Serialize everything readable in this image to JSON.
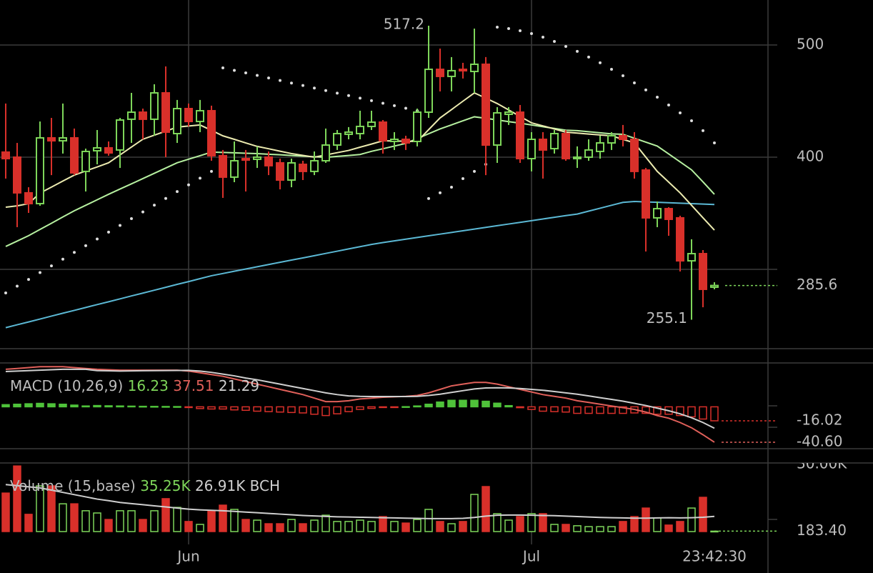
{
  "chart_data": [
    {
      "type": "candlestick",
      "categories": [
        null,
        null,
        null,
        null,
        null,
        null,
        null,
        null,
        null,
        null,
        null,
        null,
        null,
        null,
        null,
        null,
        "Jun",
        null,
        null,
        null,
        null,
        null,
        null,
        null,
        null,
        null,
        null,
        null,
        null,
        null,
        null,
        null,
        null,
        null,
        null,
        null,
        null,
        null,
        null,
        null,
        null,
        null,
        null,
        null,
        null,
        null,
        "Jul",
        null,
        null,
        null,
        null,
        null,
        null,
        null,
        null,
        null,
        null,
        null,
        null,
        null,
        null,
        null,
        null
      ],
      "open": [
        404.5,
        400,
        368.2,
        358.6,
        417.2,
        414.6,
        417.2,
        387.3,
        405.7,
        408.3,
        406.4,
        433.8,
        440.1,
        433.8,
        457.3,
        421,
        443.3,
        431.8,
        441.4,
        401.3,
        382.2,
        398.7,
        398.1,
        400,
        394.9,
        379.6,
        393.6,
        387.3,
        396.8,
        410.8,
        420.4,
        421,
        427.4,
        431.2,
        414,
        415.9,
        414,
        440.1,
        478.3,
        472,
        478.3,
        476.4,
        482.8,
        410.8,
        438.2,
        440.1,
        398.7,
        415.9,
        407.6,
        421,
        398.7,
        400,
        405.1,
        412.7,
        419.1,
        415.9,
        388.5,
        345.9,
        354.1,
        345.9,
        307.6,
        314,
        284.1
      ],
      "high": [
        447.8,
        412.7,
        373.2,
        431.8,
        435,
        447.8,
        425.5,
        407.6,
        424.2,
        414,
        435,
        457.3,
        443.3,
        465,
        480.9,
        451,
        447.8,
        451,
        445.9,
        406.4,
        414,
        406.4,
        409.6,
        405.1,
        398.7,
        398.7,
        396.8,
        405.1,
        425.5,
        424.2,
        426.8,
        441.4,
        441.4,
        433.1,
        422.3,
        419.1,
        443.3,
        517.2,
        496.8,
        489.2,
        484.1,
        514.6,
        489.2,
        444.6,
        444.6,
        446.5,
        422.3,
        422.3,
        424.2,
        424.2,
        409.6,
        415.9,
        419.1,
        422.3,
        428.7,
        422.3,
        390.4,
        360.5,
        355.4,
        347.8,
        326.8,
        317.2,
        288.5
      ],
      "low": [
        380.9,
        337.6,
        350.3,
        356.7,
        384,
        403.2,
        384,
        369.4,
        393.6,
        401.3,
        390.4,
        412.7,
        415.9,
        419.1,
        400,
        412.7,
        427.4,
        422.3,
        396.8,
        363.7,
        377.7,
        369.4,
        390.4,
        384,
        371.3,
        373.2,
        379.6,
        384,
        394.9,
        406.4,
        415.9,
        415.9,
        424.2,
        403.2,
        406.4,
        406.4,
        409.6,
        435,
        458.6,
        458.6,
        470.1,
        457.3,
        384,
        394.9,
        428.7,
        394.9,
        387.3,
        380.9,
        403.2,
        396.8,
        390.4,
        396.8,
        398.7,
        406.4,
        409.6,
        380.9,
        315.9,
        337.6,
        329.9,
        298.1,
        255.1,
        266.2,
        282.2
      ],
      "close": [
        398.7,
        368.2,
        358.6,
        417.2,
        414.6,
        417.2,
        386,
        405.1,
        408.3,
        403.8,
        433.1,
        440.1,
        433.8,
        457.3,
        422.3,
        443.3,
        431.8,
        441.4,
        401.3,
        382.2,
        396.8,
        397.5,
        400,
        392.4,
        379.6,
        394.9,
        387.3,
        396.8,
        410.8,
        421,
        422.3,
        427.4,
        431.2,
        414.6,
        415.9,
        412.7,
        440.1,
        478.3,
        472,
        477.1,
        477.1,
        482.8,
        410.8,
        439.5,
        440.1,
        398.7,
        415.9,
        406.4,
        421,
        398.7,
        400,
        406.4,
        412.7,
        419.1,
        415.9,
        387.3,
        345.9,
        354.1,
        344.6,
        307.6,
        314,
        282.2,
        285.6
      ],
      "up_color": "#7ed65a",
      "down_color": "#d9302a",
      "series": [
        {
          "color": "#5bb8d4",
          "style": "line",
          "values": [
            248,
            250.6,
            253.1,
            255.7,
            258.3,
            260.9,
            263.4,
            266,
            268.6,
            271.1,
            273.7,
            276.3,
            278.8,
            281.4,
            284,
            286.6,
            289.1,
            291.7,
            294.3,
            296.3,
            298.3,
            300.3,
            302.3,
            304.3,
            306.3,
            308.3,
            310.2,
            312.2,
            314.2,
            316.2,
            318.2,
            320.2,
            322.2,
            323.9,
            325.4,
            326.9,
            328.4,
            329.9,
            331.4,
            332.9,
            334.4,
            335.9,
            337.4,
            338.9,
            340.4,
            341.9,
            343.4,
            344.9,
            346.4,
            347.9,
            349.3,
            351.9,
            354.5,
            357.1,
            359.7,
            360.5,
            360.1,
            359.8,
            359.4,
            359,
            358.6,
            358.2,
            357.8
          ]
        },
        {
          "color": "#b6f0a0",
          "style": "line",
          "values": [
            320.4,
            325.2,
            330,
            335.6,
            341.1,
            346.7,
            352.2,
            357.1,
            362,
            366.9,
            371.6,
            376.2,
            380.9,
            385.6,
            390.3,
            395,
            398.2,
            401.3,
            404.5,
            404.2,
            403.9,
            403.5,
            403.2,
            402.6,
            402.1,
            401.5,
            400.9,
            400.4,
            399.8,
            400.7,
            401.5,
            402.4,
            405.2,
            407.5,
            409.9,
            412.3,
            416.6,
            420.9,
            425.2,
            428.8,
            432.4,
            436,
            434.6,
            433.2,
            431.7,
            430.3,
            428.7,
            427.1,
            425.6,
            424,
            423.6,
            422.7,
            421.7,
            420.8,
            420.4,
            416.9,
            413.4,
            409.9,
            402.9,
            395.8,
            388.7,
            378,
            366.9
          ]
        },
        {
          "color": "#ecebb0",
          "style": "line",
          "values": [
            355.4,
            356.6,
            358.6,
            368,
            373.3,
            378.7,
            384,
            387.7,
            391.3,
            395,
            402,
            409,
            416,
            419.6,
            423.2,
            426.8,
            427.8,
            428.7,
            423.9,
            419,
            415.9,
            412.7,
            409.6,
            407.5,
            405.3,
            403.2,
            401.6,
            400,
            402,
            404,
            406,
            408.9,
            411.7,
            414.6,
            414.4,
            414.2,
            414,
            424.5,
            435,
            442.4,
            449.9,
            457.3,
            452.6,
            447.8,
            442.1,
            436.3,
            430.6,
            427.9,
            425.1,
            422.3,
            421.5,
            420.6,
            419.8,
            419,
            415.9,
            412.7,
            400,
            387.3,
            377.8,
            368.2,
            357.1,
            346,
            335
          ]
        },
        {
          "color": "#dddddd",
          "style": "dots",
          "values": [
            279,
            285,
            291,
            297.1,
            303.1,
            309.1,
            315.1,
            321.1,
            327.1,
            333.2,
            339.2,
            345.2,
            351.2,
            357.2,
            363.2,
            369.3,
            375.3,
            381.3,
            387.3,
            479.6,
            477.4,
            475.1,
            472.9,
            470.6,
            468.4,
            466.1,
            463.9,
            461.6,
            459.4,
            457.1,
            454.9,
            452.6,
            450.4,
            448.1,
            445.9,
            443.6,
            441.4,
            363.1,
            368.2,
            373.2,
            380.9,
            387.3,
            393.6,
            515.9,
            514.6,
            512.7,
            510.2,
            507,
            503.2,
            498.7,
            494.3,
            489.2,
            484.1,
            478.3,
            472.6,
            466.2,
            459.9,
            453.5,
            446.5,
            439.5,
            432.5,
            423.6,
            412.7
          ]
        }
      ],
      "ylim": [
        229.3,
        540.1
      ],
      "yticks": [
        400,
        500
      ],
      "grid": true,
      "time_label": "23:42:30"
    },
    {
      "type": "macd",
      "legend": {
        "label": "MACD (10,26,9)",
        "values": [
          16.23,
          37.51,
          21.29
        ]
      },
      "histogram": [
        2.5,
        3,
        3.5,
        4,
        3.5,
        3,
        2,
        1,
        1.5,
        1.2,
        1,
        0.8,
        0.6,
        0.5,
        0.4,
        0.3,
        -0.8,
        -2,
        -2.5,
        -2.5,
        -3.5,
        -4,
        -5,
        -5.5,
        -6,
        -6.5,
        -7,
        -8.5,
        -10,
        -8,
        -5.5,
        -3,
        -1.8,
        -0.8,
        -0.3,
        0.2,
        1,
        3,
        5.5,
        7.5,
        7.5,
        7.5,
        6.4,
        4.2,
        1.4,
        -1,
        -3,
        -5,
        -5.5,
        -6,
        -7.5,
        -7.5,
        -7.5,
        -7.5,
        -7.5,
        -7,
        -7.5,
        -8.5,
        -8.5,
        -10,
        -11.5,
        -14,
        -16.02
      ],
      "up_color": "#4fc23a",
      "down_color": "#d9302a",
      "series": [
        {
          "color": "#e0605a",
          "values": [
            43,
            44,
            45,
            46,
            46,
            46,
            45,
            44,
            43,
            42.5,
            42,
            42,
            42,
            42,
            42,
            42,
            41,
            39,
            37,
            35,
            32,
            29,
            26,
            23,
            20,
            17,
            14,
            10,
            6,
            6,
            7,
            9,
            10,
            11,
            11.5,
            12,
            13,
            16,
            20,
            24,
            26,
            28,
            28,
            26,
            23,
            20,
            17,
            14,
            12,
            10,
            7,
            5,
            3,
            1,
            -1,
            -3,
            -6,
            -10,
            -13,
            -18,
            -24,
            -32,
            -40.6
          ],
          "last_value_label": "-40.60"
        },
        {
          "color": "#cfcfcf",
          "values": [
            40.5,
            41,
            41.5,
            42,
            42.5,
            43,
            43,
            43,
            41.5,
            41.3,
            41,
            41.2,
            41.4,
            41.5,
            41.6,
            41.7,
            41.8,
            41,
            39.5,
            37.5,
            35.5,
            33,
            31,
            28.5,
            26,
            23.5,
            21,
            18.5,
            16,
            14,
            12.5,
            12,
            11.8,
            11.8,
            11.8,
            11.8,
            12,
            13,
            14.5,
            16.5,
            18.5,
            20.5,
            21.6,
            21.8,
            21.6,
            21,
            20,
            19,
            17.5,
            16,
            14.5,
            12.5,
            10.5,
            8.5,
            6.5,
            4,
            1.5,
            -1.5,
            -4.5,
            -8,
            -12.5,
            -18,
            -24.58
          ]
        }
      ],
      "ylim": [
        -48,
        50.3
      ]
    },
    {
      "type": "volume",
      "legend": {
        "label": "Volume (15,base)",
        "values": [
          "35.25K",
          "26.91K"
        ],
        "unit": "BCH"
      },
      "values": [
        17200,
        29300,
        7700,
        20400,
        20400,
        12400,
        12400,
        9300,
        8300,
        5400,
        9300,
        9300,
        5400,
        9300,
        14700,
        10800,
        4500,
        3200,
        9300,
        11800,
        9900,
        5400,
        5100,
        3500,
        3500,
        5400,
        3500,
        5100,
        7300,
        4500,
        4500,
        5100,
        4500,
        6700,
        4500,
        3800,
        5400,
        9900,
        4500,
        3500,
        4500,
        16600,
        20100,
        8000,
        5100,
        6700,
        8000,
        8000,
        3200,
        3200,
        2600,
        2200,
        2200,
        2200,
        4500,
        6700,
        10500,
        6100,
        2900,
        4500,
        10500,
        15300,
        183.4
      ],
      "last_value_label": "183.40",
      "up_color": "#7ed65a",
      "down_color": "#d9302a",
      "ma": {
        "color": "#cfcfcf",
        "values": [
          21000,
          20500,
          20000,
          19500,
          18500,
          17500,
          16500,
          15500,
          14500,
          13800,
          13000,
          12500,
          12000,
          11500,
          11000,
          10500,
          10000,
          9700,
          9500,
          9300,
          9000,
          8700,
          8400,
          8100,
          7800,
          7500,
          7200,
          7000,
          6800,
          6600,
          6500,
          6400,
          6300,
          6200,
          6100,
          6000,
          5900,
          5800,
          5800,
          5800,
          5900,
          6300,
          6900,
          7300,
          7400,
          7400,
          7300,
          7200,
          7100,
          6900,
          6700,
          6500,
          6300,
          6200,
          6100,
          6000,
          6000,
          6100,
          6200,
          6100,
          6200,
          6400,
          6800
        ]
      },
      "ylim": [
        0,
        30640
      ],
      "yticks": [
        {
          "value": 30000,
          "label": "30.00K"
        }
      ]
    }
  ]
}
